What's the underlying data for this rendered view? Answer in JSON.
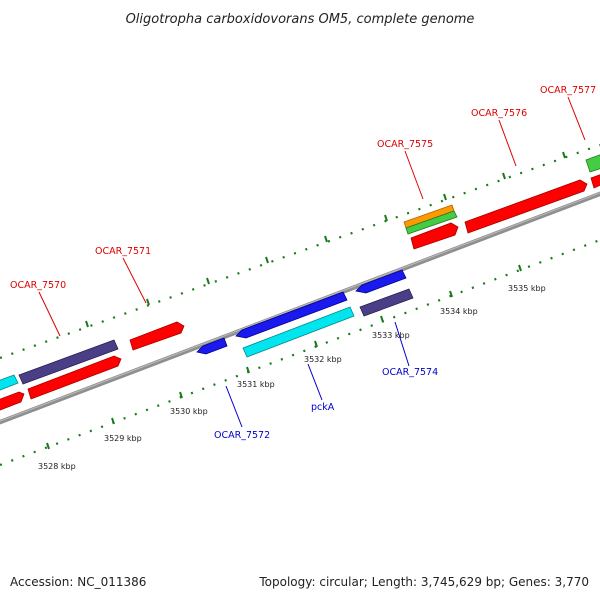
{
  "title": "Oligotropha carboxidovorans OM5, complete genome",
  "footer": {
    "accession": "Accession: NC_011386",
    "stats": "Topology: circular; Length: 3,745,629 bp; Genes: 3,770"
  },
  "colors": {
    "forward_label": "#dd0000",
    "reverse_label": "#0000cc",
    "tick": "#1a7a1a",
    "backbone": "#8f8f8f"
  },
  "scale_labels": [
    "3528 kbp",
    "3529 kbp",
    "3530 kbp",
    "3531 kbp",
    "3532 kbp",
    "3533 kbp",
    "3534 kbp",
    "3535 kbp"
  ],
  "gene_labels": [
    "OCAR_7570",
    "OCAR_7571",
    "OCAR_7575",
    "OCAR_7576",
    "OCAR_7577",
    "OCAR_7572",
    "pckA",
    "OCAR_7574"
  ]
}
